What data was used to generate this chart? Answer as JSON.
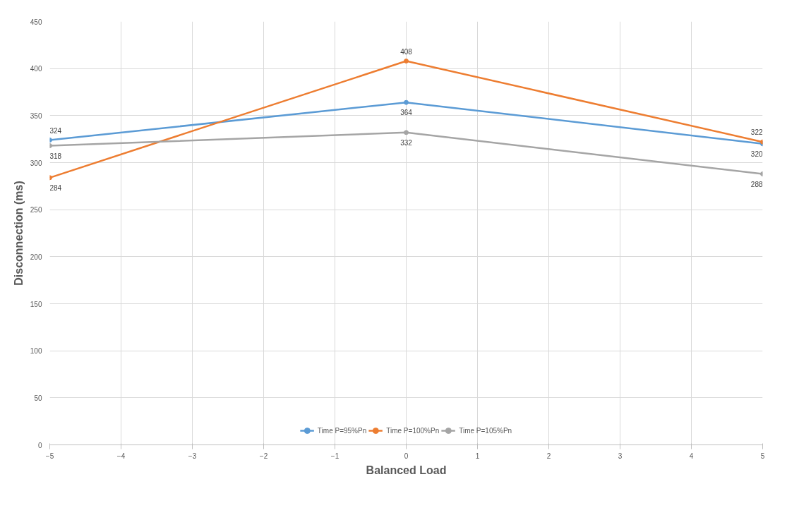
{
  "chart_data": {
    "type": "line",
    "xlabel": "Balanced Load",
    "ylabel": "Disconnection (ms)",
    "x": [
      -5,
      0,
      5
    ],
    "series": [
      {
        "name": "Time P=95%Pn",
        "color": "#5b9bd5",
        "values": [
          324,
          364,
          320
        ]
      },
      {
        "name": "Time P=100%Pn",
        "color": "#ed7d31",
        "values": [
          284,
          408,
          322
        ]
      },
      {
        "name": "Time P=105%Pn",
        "color": "#a5a5a5",
        "values": [
          318,
          332,
          288
        ]
      }
    ],
    "xlim": [
      -5,
      5
    ],
    "xticks": [
      -5,
      -4,
      -3,
      -2,
      -1,
      0,
      1,
      2,
      3,
      4,
      5
    ],
    "ylim": [
      0,
      450
    ],
    "yticks": [
      0,
      50,
      100,
      150,
      200,
      250,
      300,
      350,
      400,
      450
    ],
    "grid": true,
    "legend": "bottom",
    "marker": "circle",
    "line_style": "solid",
    "data_labels": true
  }
}
